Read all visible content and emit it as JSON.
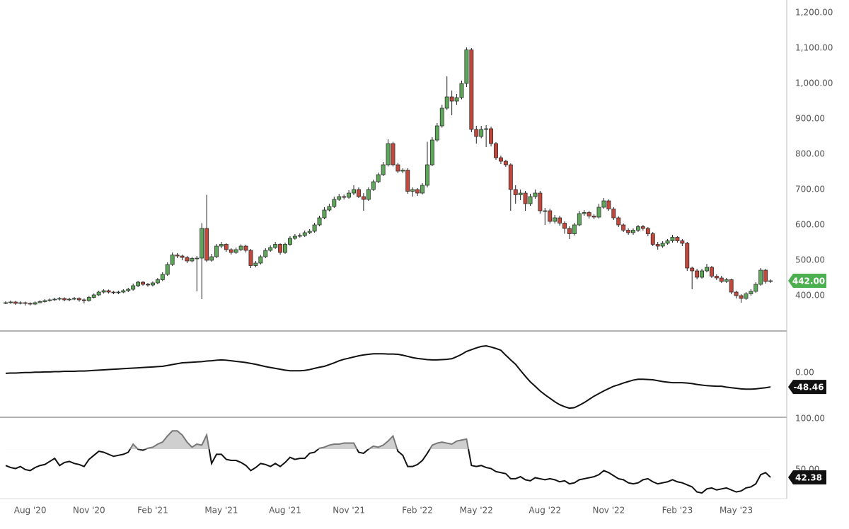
{
  "chart_data": [
    {
      "type": "candlestick",
      "categories": [
        null,
        null,
        null,
        null,
        null,
        "Aug '20",
        null,
        null,
        null,
        null,
        null,
        null,
        null,
        null,
        null,
        null,
        null,
        "Nov '20",
        null,
        null,
        null,
        null,
        null,
        null,
        null,
        null,
        null,
        null,
        null,
        null,
        "Feb '21",
        null,
        null,
        null,
        null,
        null,
        null,
        null,
        null,
        null,
        null,
        null,
        null,
        null,
        "May '21",
        null,
        null,
        null,
        null,
        null,
        null,
        null,
        null,
        null,
        null,
        null,
        null,
        "Aug '21",
        null,
        null,
        null,
        null,
        null,
        null,
        null,
        null,
        null,
        null,
        null,
        null,
        "Nov '21",
        null,
        null,
        null,
        null,
        null,
        null,
        null,
        null,
        null,
        null,
        null,
        null,
        null,
        "Feb '22",
        null,
        null,
        null,
        null,
        null,
        null,
        null,
        null,
        null,
        null,
        null,
        "May '22",
        null,
        null,
        null,
        null,
        null,
        null,
        null,
        null,
        null,
        null,
        null,
        null,
        null,
        "Aug '22",
        null,
        null,
        null,
        null,
        null,
        null,
        null,
        null,
        null,
        null,
        null,
        null,
        "Nov '22",
        null,
        null,
        null,
        null,
        null,
        null,
        null,
        null,
        null,
        null,
        null,
        null,
        null,
        "Feb '23",
        null,
        null,
        null,
        null,
        null,
        null,
        null,
        null,
        null,
        null,
        null,
        "May '23",
        null,
        null,
        null,
        null,
        null,
        null,
        null
      ],
      "open": [
        380,
        380,
        382,
        378,
        380,
        378,
        376,
        380,
        383,
        386,
        388,
        390,
        392,
        388,
        390,
        392,
        388,
        386,
        395,
        402,
        410,
        414,
        410,
        408,
        410,
        414,
        418,
        428,
        438,
        432,
        430,
        436,
        445,
        460,
        488,
        515,
        512,
        508,
        498,
        505,
        506,
        590,
        500,
        510,
        540,
        545,
        530,
        522,
        530,
        540,
        528,
        485,
        492,
        510,
        528,
        536,
        545,
        522,
        545,
        562,
        568,
        570,
        578,
        582,
        600,
        620,
        642,
        652,
        672,
        680,
        678,
        690,
        700,
        680,
        672,
        700,
        722,
        742,
        770,
        830,
        770,
        752,
        755,
        695,
        700,
        690,
        712,
        770,
        840,
        880,
        930,
        962,
        950,
        960,
        1000,
        1095,
        870,
        850,
        870,
        872,
        830,
        790,
        780,
        770,
        700,
        685,
        690,
        660,
        680,
        690,
        640,
        640,
        610,
        620,
        605,
        590,
        575,
        600,
        632,
        635,
        625,
        622,
        650,
        668,
        645,
        620,
        600,
        585,
        578,
        585,
        595,
        590,
        575,
        545,
        540,
        548,
        555,
        565,
        555,
        548,
        478,
        470,
        452,
        470,
        480,
        455,
        450,
        440,
        445,
        410,
        400,
        392,
        405,
        412,
        432,
        472,
        440
      ],
      "high": [
        384,
        386,
        385,
        384,
        383,
        381,
        384,
        387,
        390,
        392,
        394,
        396,
        395,
        394,
        396,
        395,
        392,
        399,
        406,
        414,
        418,
        417,
        413,
        414,
        418,
        422,
        434,
        442,
        441,
        436,
        440,
        450,
        466,
        494,
        522,
        520,
        516,
        512,
        510,
        512,
        605,
        685,
        518,
        546,
        552,
        548,
        534,
        536,
        545,
        544,
        532,
        498,
        515,
        534,
        542,
        552,
        548,
        550,
        568,
        574,
        576,
        584,
        588,
        606,
        626,
        650,
        660,
        680,
        688,
        686,
        698,
        712,
        706,
        690,
        706,
        728,
        748,
        778,
        842,
        835,
        776,
        760,
        760,
        706,
        704,
        718,
        835,
        848,
        888,
        940,
        1020,
        980,
        970,
        1008,
        1102,
        1100,
        880,
        880,
        882,
        878,
        834,
        796,
        784,
        774,
        712,
        700,
        696,
        688,
        700,
        696,
        648,
        646,
        628,
        626,
        610,
        596,
        606,
        640,
        642,
        640,
        630,
        660,
        676,
        672,
        650,
        624,
        604,
        590,
        590,
        600,
        600,
        594,
        580,
        552,
        554,
        560,
        572,
        568,
        560,
        552,
        482,
        476,
        476,
        490,
        484,
        460,
        456,
        450,
        448,
        414,
        404,
        410,
        418,
        438,
        478,
        476,
        446
      ],
      "low": [
        376,
        377,
        374,
        375,
        372,
        372,
        373,
        378,
        380,
        383,
        385,
        386,
        384,
        384,
        387,
        383,
        378,
        383,
        392,
        399,
        406,
        406,
        404,
        404,
        407,
        410,
        414,
        424,
        428,
        425,
        426,
        432,
        441,
        456,
        484,
        506,
        500,
        492,
        494,
        412,
        390,
        495,
        496,
        506,
        534,
        524,
        516,
        518,
        526,
        522,
        478,
        480,
        488,
        506,
        524,
        532,
        516,
        518,
        541,
        558,
        564,
        566,
        574,
        578,
        596,
        616,
        638,
        648,
        668,
        672,
        674,
        684,
        676,
        640,
        668,
        696,
        718,
        738,
        765,
        765,
        746,
        746,
        688,
        680,
        682,
        686,
        706,
        766,
        835,
        875,
        925,
        910,
        940,
        955,
        990,
        862,
        830,
        845,
        820,
        822,
        784,
        772,
        764,
        640,
        660,
        670,
        640,
        654,
        674,
        632,
        600,
        604,
        604,
        598,
        575,
        560,
        570,
        596,
        626,
        618,
        616,
        618,
        646,
        640,
        614,
        594,
        580,
        572,
        572,
        580,
        584,
        568,
        540,
        530,
        535,
        544,
        550,
        550,
        540,
        470,
        418,
        446,
        448,
        466,
        450,
        444,
        436,
        436,
        404,
        392,
        380,
        388,
        400,
        408,
        428,
        434,
        436
      ],
      "close": [
        380,
        382,
        378,
        380,
        378,
        376,
        380,
        383,
        386,
        388,
        390,
        392,
        388,
        390,
        392,
        388,
        386,
        395,
        402,
        410,
        414,
        410,
        408,
        410,
        414,
        418,
        428,
        438,
        432,
        430,
        436,
        445,
        460,
        488,
        515,
        512,
        508,
        498,
        505,
        506,
        590,
        500,
        510,
        540,
        545,
        530,
        522,
        530,
        540,
        528,
        485,
        492,
        510,
        528,
        536,
        545,
        522,
        545,
        562,
        568,
        570,
        578,
        582,
        600,
        620,
        642,
        652,
        672,
        680,
        678,
        690,
        700,
        680,
        672,
        700,
        722,
        742,
        770,
        830,
        770,
        752,
        755,
        695,
        700,
        690,
        712,
        770,
        840,
        880,
        930,
        962,
        950,
        960,
        1000,
        1095,
        870,
        850,
        870,
        872,
        830,
        790,
        780,
        770,
        700,
        685,
        690,
        660,
        680,
        690,
        640,
        640,
        610,
        620,
        605,
        590,
        575,
        600,
        632,
        635,
        625,
        622,
        650,
        668,
        645,
        620,
        600,
        585,
        578,
        585,
        595,
        590,
        575,
        545,
        540,
        548,
        555,
        565,
        555,
        548,
        478,
        470,
        452,
        470,
        480,
        455,
        450,
        440,
        445,
        410,
        400,
        392,
        405,
        412,
        432,
        472,
        440,
        442
      ],
      "up_color": "#5ea65a",
      "down_color": "#c0483c",
      "badge_color": "#4caf50",
      "last_value_label": "442.00",
      "ylim": [
        300,
        1236
      ],
      "yticks": [
        {
          "value": 400,
          "label": "400.00"
        },
        {
          "value": 500,
          "label": "500.00"
        },
        {
          "value": 600,
          "label": "600.00"
        },
        {
          "value": 700,
          "label": "700.00"
        },
        {
          "value": 800,
          "label": "800.00"
        },
        {
          "value": 900,
          "label": "900.00"
        },
        {
          "value": 1000,
          "label": "1,000.00"
        },
        {
          "value": 1100,
          "label": "1,100.00"
        },
        {
          "value": 1200,
          "label": "1,200.00"
        }
      ],
      "grid": true
    },
    {
      "type": "line",
      "values": [
        -2,
        -1,
        -1,
        0,
        1,
        1,
        2,
        2,
        3,
        3,
        4,
        4,
        5,
        5,
        5,
        6,
        6,
        7,
        8,
        9,
        10,
        11,
        12,
        13,
        14,
        15,
        16,
        17,
        18,
        19,
        20,
        21,
        22,
        25,
        28,
        31,
        34,
        35,
        36,
        37,
        38,
        40,
        41,
        43,
        44,
        43,
        41,
        39,
        37,
        35,
        32,
        29,
        25,
        21,
        18,
        15,
        12,
        9,
        7,
        7,
        7,
        8,
        11,
        15,
        19,
        22,
        28,
        34,
        41,
        46,
        50,
        54,
        58,
        61,
        63,
        65,
        65,
        65,
        64,
        64,
        63,
        60,
        56,
        52,
        49,
        47,
        45,
        44,
        44,
        45,
        46,
        48,
        55,
        63,
        73,
        79,
        85,
        90,
        92,
        88,
        83,
        77,
        60,
        44,
        29,
        8,
        -12,
        -31,
        -46,
        -62,
        -75,
        -87,
        -99,
        -109,
        -116,
        -121,
        -119,
        -111,
        -102,
        -91,
        -80,
        -71,
        -62,
        -54,
        -46,
        -41,
        -35,
        -30,
        -25,
        -22,
        -22,
        -23,
        -24,
        -27,
        -30,
        -32,
        -34,
        -34,
        -34,
        -35,
        -37,
        -40,
        -42,
        -44,
        -45,
        -46,
        -46,
        -49,
        -51,
        -53,
        -55,
        -56,
        -56,
        -55,
        -53,
        -51,
        -48.46
      ],
      "color": "#111111",
      "badge_color": "#111111",
      "ylim": [
        -152,
        138
      ],
      "yticks": [
        {
          "value": 0,
          "label": "0.00"
        }
      ],
      "grid": true
    },
    {
      "type": "oscillator",
      "values": [
        54,
        52,
        51,
        53,
        50,
        49,
        52,
        54,
        55,
        58,
        61,
        54,
        57,
        58,
        56,
        55,
        53,
        60,
        64,
        68,
        67,
        65,
        63,
        64,
        65,
        67,
        75,
        70,
        69,
        71,
        72,
        75,
        77,
        83,
        88,
        88,
        84,
        77,
        72,
        75,
        74,
        84,
        56,
        65,
        65,
        60,
        59,
        59,
        57,
        54,
        49,
        52,
        56,
        55,
        53,
        56,
        53,
        57,
        62,
        60,
        61,
        61,
        66,
        67,
        71,
        72,
        74,
        75,
        75,
        76,
        76,
        76,
        67,
        66,
        70,
        73,
        72,
        74,
        78,
        83,
        68,
        64,
        53,
        53,
        55,
        59,
        66,
        74,
        76,
        77,
        76,
        75,
        78,
        79,
        80,
        54,
        53,
        54,
        52,
        51,
        48,
        47,
        46,
        41,
        41,
        43,
        40,
        39,
        42,
        41,
        40,
        41,
        40,
        38,
        39,
        36,
        37,
        40,
        41,
        42,
        43,
        45,
        49,
        47,
        44,
        41,
        40,
        37,
        36,
        37,
        40,
        41,
        38,
        36,
        37,
        38,
        40,
        38,
        37,
        35,
        33,
        28,
        27,
        31,
        32,
        30,
        31,
        32,
        30,
        28,
        29,
        32,
        33,
        36,
        45,
        47,
        42.38
      ],
      "color": "#111111",
      "fill_color": "#cfcfcf",
      "upper_color": "#777777",
      "badge_color": "#111111",
      "bands": [
        30,
        70
      ],
      "ylim": [
        21.5,
        100
      ],
      "yticks": [
        {
          "value": 100,
          "label": "100.00"
        },
        {
          "value": 50,
          "label": "50.00"
        }
      ],
      "grid": true
    }
  ]
}
